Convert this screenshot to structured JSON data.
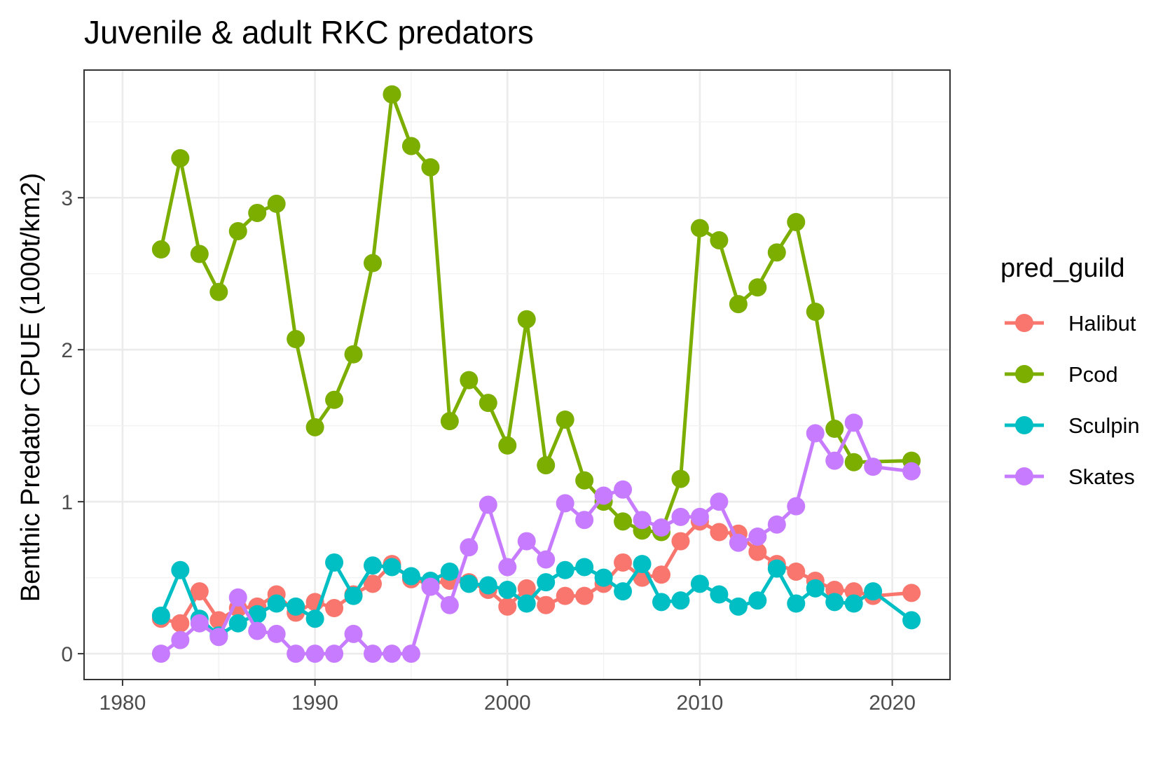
{
  "chart_data": {
    "type": "line",
    "title": "Juvenile & adult RKC predators",
    "xlabel": "",
    "ylabel": "Benthic Predator CPUE (1000t/km2)",
    "xlim": [
      1978,
      2023
    ],
    "ylim": [
      -0.17,
      3.84
    ],
    "x_ticks": [
      1980,
      1990,
      2000,
      2010,
      2020
    ],
    "x_tick_labels": [
      "1980",
      "1990",
      "2000",
      "2010",
      "2020"
    ],
    "y_ticks": [
      0,
      1,
      2,
      3
    ],
    "y_tick_labels": [
      "0",
      "1",
      "2",
      "3"
    ],
    "grid": true,
    "legend": {
      "title": "pred_guild",
      "position": "right"
    },
    "series": [
      {
        "name": "Halibut",
        "color": "#F8766D",
        "x": [
          1982,
          1983,
          1984,
          1985,
          1986,
          1987,
          1988,
          1989,
          1990,
          1991,
          1992,
          1993,
          1994,
          1995,
          1996,
          1997,
          1998,
          1999,
          2000,
          2001,
          2002,
          2003,
          2004,
          2005,
          2006,
          2007,
          2008,
          2009,
          2010,
          2011,
          2012,
          2013,
          2014,
          2015,
          2016,
          2017,
          2018,
          2019,
          2021
        ],
        "y": [
          0.23,
          0.2,
          0.41,
          0.22,
          0.3,
          0.31,
          0.39,
          0.27,
          0.34,
          0.3,
          0.39,
          0.46,
          0.59,
          0.49,
          0.46,
          0.48,
          0.47,
          0.42,
          0.31,
          0.43,
          0.32,
          0.38,
          0.38,
          0.46,
          0.6,
          0.5,
          0.52,
          0.74,
          0.87,
          0.8,
          0.79,
          0.67,
          0.59,
          0.54,
          0.48,
          0.42,
          0.41,
          0.38,
          0.4
        ]
      },
      {
        "name": "Pcod",
        "color": "#7CAE00",
        "x": [
          1982,
          1983,
          1984,
          1985,
          1986,
          1987,
          1988,
          1989,
          1990,
          1991,
          1992,
          1993,
          1994,
          1995,
          1996,
          1997,
          1998,
          1999,
          2000,
          2001,
          2002,
          2003,
          2004,
          2005,
          2006,
          2007,
          2008,
          2009,
          2010,
          2011,
          2012,
          2013,
          2014,
          2015,
          2016,
          2017,
          2018,
          2021
        ],
        "y": [
          2.66,
          3.26,
          2.63,
          2.38,
          2.78,
          2.9,
          2.96,
          2.07,
          1.49,
          1.67,
          1.97,
          2.57,
          3.68,
          3.34,
          3.2,
          1.53,
          1.8,
          1.65,
          1.37,
          2.2,
          1.24,
          1.54,
          1.14,
          1.0,
          0.87,
          0.81,
          0.8,
          1.15,
          2.8,
          2.72,
          2.3,
          2.41,
          2.64,
          2.84,
          2.25,
          1.48,
          1.26,
          1.27
        ]
      },
      {
        "name": "Sculpin",
        "color": "#00BFC4",
        "x": [
          1982,
          1983,
          1984,
          1985,
          1986,
          1987,
          1988,
          1989,
          1990,
          1991,
          1992,
          1993,
          1994,
          1995,
          1996,
          1997,
          1998,
          1999,
          2000,
          2001,
          2002,
          2003,
          2004,
          2005,
          2006,
          2007,
          2008,
          2009,
          2010,
          2011,
          2012,
          2013,
          2014,
          2015,
          2016,
          2017,
          2018,
          2019,
          2021
        ],
        "y": [
          0.25,
          0.55,
          0.23,
          0.12,
          0.2,
          0.26,
          0.33,
          0.31,
          0.23,
          0.6,
          0.38,
          0.58,
          0.57,
          0.51,
          0.48,
          0.54,
          0.46,
          0.45,
          0.42,
          0.33,
          0.47,
          0.55,
          0.57,
          0.5,
          0.41,
          0.59,
          0.34,
          0.35,
          0.46,
          0.39,
          0.31,
          0.35,
          0.56,
          0.33,
          0.43,
          0.34,
          0.33,
          0.41,
          0.22
        ]
      },
      {
        "name": "Skates",
        "color": "#C77CFF",
        "x": [
          1982,
          1983,
          1984,
          1985,
          1986,
          1987,
          1988,
          1989,
          1990,
          1991,
          1992,
          1993,
          1994,
          1995,
          1996,
          1997,
          1998,
          1999,
          2000,
          2001,
          2002,
          2003,
          2004,
          2005,
          2006,
          2007,
          2008,
          2009,
          2010,
          2011,
          2012,
          2013,
          2014,
          2015,
          2016,
          2017,
          2018,
          2019,
          2021
        ],
        "y": [
          0.0,
          0.09,
          0.2,
          0.11,
          0.37,
          0.15,
          0.13,
          0.0,
          0.0,
          0.0,
          0.13,
          0.0,
          0.0,
          0.0,
          0.44,
          0.32,
          0.7,
          0.98,
          0.57,
          0.74,
          0.62,
          0.99,
          0.88,
          1.04,
          1.08,
          0.88,
          0.83,
          0.9,
          0.9,
          1.0,
          0.73,
          0.77,
          0.85,
          0.97,
          1.45,
          1.27,
          1.52,
          1.23,
          1.2
        ]
      }
    ]
  }
}
